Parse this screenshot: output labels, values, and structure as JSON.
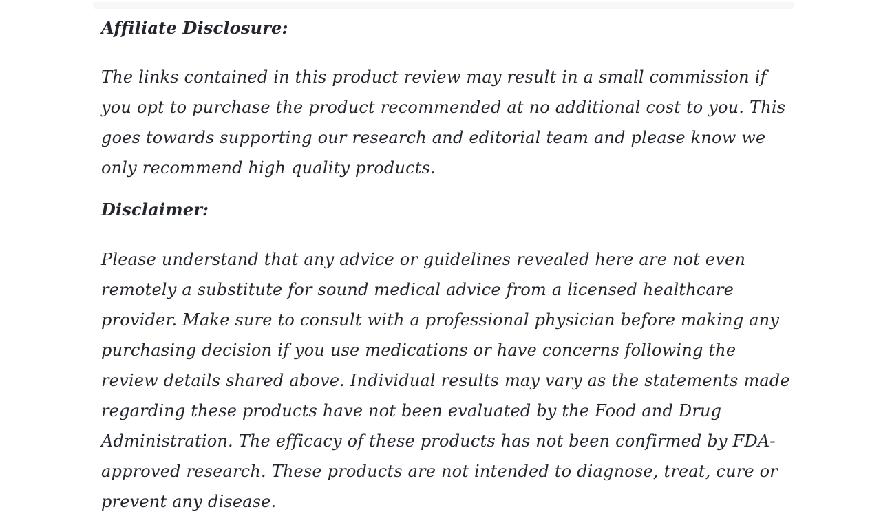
{
  "page": {
    "background_color": "#ffffff",
    "text_color": "#23272d",
    "divider_color": "#f7f7f8"
  },
  "article": {
    "sections": [
      {
        "heading": "Affiliate Disclosure:",
        "body": "The links contained in this product review may result in a small commission if you opt to purchase the product recommended at no additional cost to you. This goes towards supporting our research and editorial team and please know we only recommend high quality products."
      },
      {
        "heading": "Disclaimer:",
        "body": "Please understand that any advice or guidelines revealed here are not even remotely a substitute for sound medical advice from a licensed healthcare provider. Make sure to consult with a professional physician before making any purchasing decision if you use medications or have concerns following the review details shared above. Individual results may vary as the statements made regarding these products have not been evaluated by the Food and Drug Administration. The efficacy of these products has not been confirmed by FDA-approved research. These products are not intended to diagnose, treat, cure or prevent any disease."
      }
    ]
  }
}
